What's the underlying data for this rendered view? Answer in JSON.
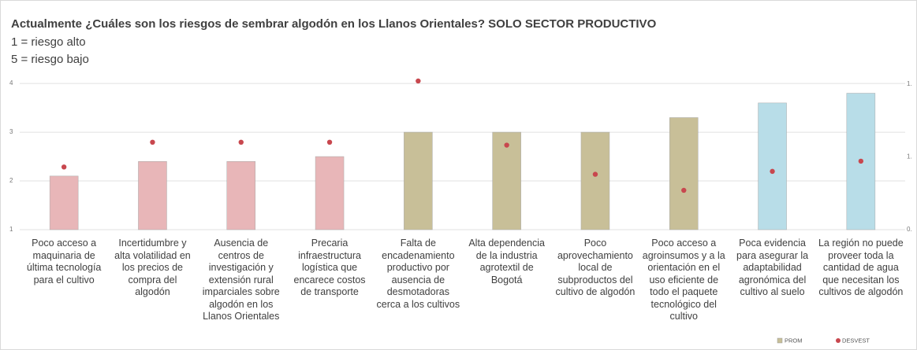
{
  "chart_data": {
    "type": "bar",
    "title": "Actualmente ¿Cuáles son los riesgos de sembrar algodón en los Llanos Orientales? SOLO SECTOR PRODUCTIVO",
    "subtitle": [
      "1 = riesgo alto",
      "5 = riesgo bajo"
    ],
    "categories": [
      "Poco acceso a maquinaria de última tecnología para el cultivo",
      "Incertidumbre y alta volatilidad en los precios de compra del algodón",
      "Ausencia de centros de investigación y extensión rural imparciales sobre algodón en los Llanos Orientales",
      "Precaria infraestructura logística que encarece costos de transporte",
      "Falta de encadenamiento productivo por ausencia de desmotadoras cerca a los cultivos",
      "Alta dependencia de la industria agrotextil de Bogotá",
      "Poco aprovechamiento local de subproductos del cultivo de algodón",
      "Poco acceso a agroinsumos y a la orientación en el uso eficiente de todo el paquete tecnológico del cultivo",
      "Poca evidencia para asegurar la adaptabilidad agronómica del cultivo al suelo",
      "La región no puede proveer toda la cantidad de agua que necesitan los cultivos de algodón"
    ],
    "series": [
      {
        "name": "PROM",
        "color": "#c8bf98",
        "bar_colors": [
          "#e8b6b8",
          "#e8b6b8",
          "#e8b6b8",
          "#e8b6b8",
          "#c8bf98",
          "#c8bf98",
          "#c8bf98",
          "#c8bf98",
          "#b8dde8",
          "#b8dde8"
        ],
        "values": [
          2.1,
          2.4,
          2.4,
          2.5,
          3,
          3,
          3,
          3.3,
          3.6,
          3.8
        ]
      },
      {
        "name": "DESVEST",
        "color": "#c8474e",
        "axis": "y2",
        "values": [
          0.93,
          1.1,
          1.1,
          1.1,
          1.52,
          1.08,
          0.88,
          0.77,
          0.9,
          0.97
        ]
      }
    ],
    "ylim": [
      1,
      4.26
    ],
    "yticks": [
      1,
      2,
      3,
      4
    ],
    "y2lim": [
      0.5,
      1.59
    ],
    "y2ticks": [
      {
        "value": 0.5,
        "label": "0."
      },
      {
        "value": 1.0,
        "label": "1."
      },
      {
        "value": 1.5,
        "label": "1."
      }
    ],
    "legend": "bottom-right"
  }
}
